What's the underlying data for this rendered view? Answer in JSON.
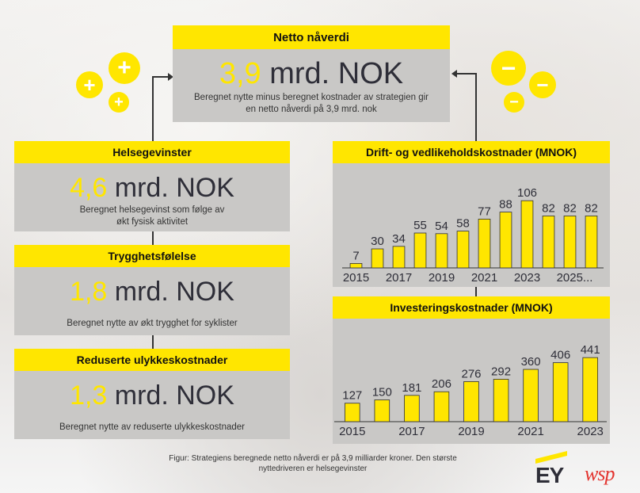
{
  "netto": {
    "title": "Netto nåverdi",
    "value": "3,9",
    "unit": " mrd. NOK",
    "description": "Beregnet nytte minus beregnet kostnader av strategien gir en netto nåverdi på 3,9 mrd. nok"
  },
  "helse": {
    "title": "Helsegevinster",
    "value": "4,6",
    "unit": " mrd. NOK",
    "description_line1": "Beregnet helsegevinst som følge av",
    "description_line2": "økt fysisk aktivitet"
  },
  "trygg": {
    "title": "Trygghetsfølelse",
    "value": "1,8",
    "unit": " mrd. NOK",
    "description": "Beregnet nytte av økt trygghet for syklister"
  },
  "ulykke": {
    "title": "Reduserte ulykkeskostnader",
    "value": "1,3",
    "unit": " mrd. NOK",
    "description": "Beregnet nytte av reduserte ulykkeskostnader"
  },
  "icons": {
    "plus": "+",
    "minus": "−"
  },
  "chart_data": [
    {
      "type": "bar",
      "title": "Drift- og vedlikeholdskostnader (MNOK)",
      "categories": [
        "2015",
        "2016",
        "2017",
        "2018",
        "2019",
        "2020",
        "2021",
        "2022",
        "2023",
        "2024",
        "2025",
        "2026"
      ],
      "values": [
        7,
        30,
        34,
        55,
        54,
        58,
        77,
        88,
        106,
        82,
        82,
        82
      ],
      "tick_labels": [
        "2015",
        "2017",
        "2019",
        "2021",
        "2023",
        "2025..."
      ],
      "ylim": [
        0,
        120
      ]
    },
    {
      "type": "bar",
      "title": "Investeringskostnader (MNOK)",
      "categories": [
        "2015",
        "2016",
        "2017",
        "2018",
        "2019",
        "2020",
        "2021",
        "2022",
        "2023"
      ],
      "values": [
        127,
        150,
        181,
        206,
        276,
        292,
        360,
        406,
        441
      ],
      "tick_labels": [
        "2015",
        "2017",
        "2019",
        "2021",
        "2023"
      ],
      "ylim": [
        0,
        480
      ]
    }
  ],
  "caption_line1": "Figur: Strategiens beregnede netto nåverdi er på 3,9 milliarder kroner. Den største",
  "caption_line2": "nyttedriveren er helsegevinster",
  "logos": {
    "ey": "EY",
    "wsp": "wsp"
  }
}
